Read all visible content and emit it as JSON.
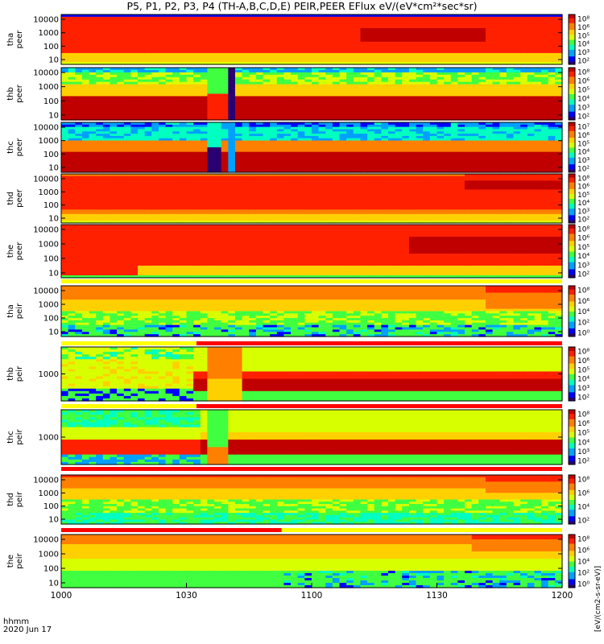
{
  "title": "P5, P1, P2, P3, P4 (TH-A,B,C,D,E) PEIR,PEER EFlux eV/(eV*cm²*sec*sr)",
  "time_axis": {
    "label_line1": "hhmm",
    "label_line2": "2020 Jun 17",
    "ticks": [
      "1000",
      "1030",
      "1100",
      "1130",
      "1200"
    ]
  },
  "colorbar_label": "[eV/(cm2-s-sr-eV)]",
  "colors": {
    "background": "#ffffff",
    "frame": "#000000",
    "flag_red": "#ff0000",
    "flag_yellow": "#ffff00"
  },
  "chart_data": {
    "type": "heatmap",
    "x_range": [
      "10:00",
      "12:00"
    ],
    "colormap": [
      "#2a0070",
      "#0000ff",
      "#00a0ff",
      "#00ffc0",
      "#40ff40",
      "#d8ff00",
      "#ffd000",
      "#ff8000",
      "#ff2000",
      "#c00000"
    ],
    "panels": [
      {
        "id": "tha_peer",
        "ylabel": [
          "tha",
          "peer"
        ],
        "yticks": [
          "10000",
          "1000",
          "100",
          "10"
        ],
        "cbar_ticks": [
          "10⁸",
          "10⁶",
          "10⁵",
          "10⁴",
          "10³",
          "10²"
        ]
      },
      {
        "id": "thb_peer",
        "ylabel": [
          "thb",
          "peer"
        ],
        "yticks": [
          "10000",
          "1000",
          "100",
          "10"
        ],
        "cbar_ticks": [
          "10⁸",
          "10⁶",
          "10⁵",
          "10⁴",
          "10³",
          "10²"
        ]
      },
      {
        "id": "thc_peer",
        "ylabel": [
          "thc",
          "peer"
        ],
        "yticks": [
          "10000",
          "1000",
          "100",
          "10"
        ],
        "cbar_ticks": [
          "10⁷",
          "10⁶",
          "10⁵",
          "10⁴",
          "10³",
          "10²"
        ]
      },
      {
        "id": "thd_peer",
        "ylabel": [
          "thd",
          "peer"
        ],
        "yticks": [
          "10000",
          "1000",
          "100",
          "10"
        ],
        "cbar_ticks": [
          "10⁸",
          "10⁶",
          "10⁵",
          "10⁴",
          "10³",
          "10²"
        ]
      },
      {
        "id": "the_peer",
        "ylabel": [
          "the",
          "peer"
        ],
        "yticks": [
          "10000",
          "1000",
          "100",
          "10"
        ],
        "cbar_ticks": [
          "10⁸",
          "10⁶",
          "10⁵",
          "10⁴",
          "10³",
          "10²"
        ]
      },
      {
        "id": "tha_peir",
        "ylabel": [
          "tha",
          "peir"
        ],
        "yticks": [
          "10000",
          "1000",
          "100",
          "10"
        ],
        "cbar_ticks": [
          "10⁸",
          "10⁶",
          "10⁴",
          "10²",
          "10⁰"
        ]
      },
      {
        "id": "thb_peir",
        "ylabel": [
          "thb",
          "peir"
        ],
        "yticks": [
          "1000"
        ],
        "cbar_ticks": [
          "10⁸",
          "10⁶",
          "10⁵",
          "10⁴",
          "10³",
          "10²"
        ]
      },
      {
        "id": "thc_peir",
        "ylabel": [
          "thc",
          "peir"
        ],
        "yticks": [
          "1000"
        ],
        "cbar_ticks": [
          "10⁸",
          "10⁶",
          "10⁵",
          "10⁴",
          "10³",
          "10²"
        ]
      },
      {
        "id": "thd_peir",
        "ylabel": [
          "thd",
          "peir"
        ],
        "yticks": [
          "10000",
          "1000",
          "100",
          "10"
        ],
        "cbar_ticks": [
          "10⁸",
          "10⁶",
          "10⁴",
          "10²"
        ]
      },
      {
        "id": "the_peir",
        "ylabel": [
          "the",
          "peir"
        ],
        "yticks": [
          "10000",
          "1000",
          "100",
          "10"
        ],
        "cbar_ticks": [
          "10⁸",
          "10⁶",
          "10⁴",
          "10²",
          "10⁰"
        ]
      }
    ]
  }
}
